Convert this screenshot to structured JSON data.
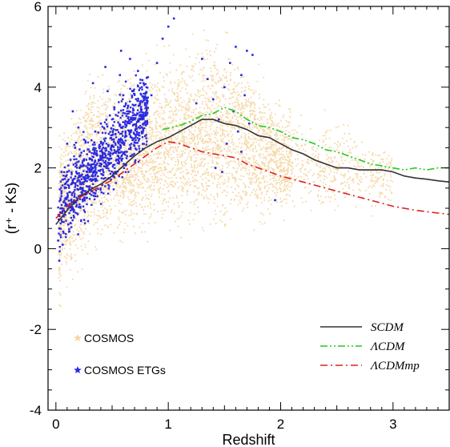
{
  "chart_data": {
    "type": "scatter",
    "xlabel": "Redshift",
    "ylabel": "(r⁺ - Ks)",
    "xlim": [
      -0.07,
      3.5
    ],
    "ylim": [
      -4,
      6
    ],
    "x_ticks": [
      0,
      1,
      2,
      3
    ],
    "y_ticks": [
      6,
      4,
      2,
      0,
      -2,
      -4
    ],
    "grid": false,
    "legend_left": [
      "COSMOS",
      "COSMOS ETGs"
    ],
    "legend_right": [
      "SCDM",
      "ΛCDM",
      "ΛCDMmp"
    ],
    "series": [
      {
        "name": "COSMOS",
        "kind": "scatter",
        "color": "#f5d5a0",
        "envelope": [
          {
            "x": 0.02,
            "lo": -1.2,
            "hi": 2.8
          },
          {
            "x": 0.3,
            "lo": 0.2,
            "hi": 4.2
          },
          {
            "x": 0.6,
            "lo": 0.3,
            "hi": 4.3
          },
          {
            "x": 1.0,
            "lo": 0.6,
            "hi": 4.8
          },
          {
            "x": 1.3,
            "lo": 0.5,
            "hi": 5.2
          },
          {
            "x": 1.6,
            "lo": 0.6,
            "hi": 5.0
          },
          {
            "x": 2.0,
            "lo": 0.8,
            "hi": 3.6
          },
          {
            "x": 2.5,
            "lo": 1.0,
            "hi": 3.1
          },
          {
            "x": 3.0,
            "lo": 1.1,
            "hi": 2.6
          }
        ]
      },
      {
        "name": "COSMOS ETGs",
        "kind": "scatter",
        "color": "#2a2ae0",
        "points": [
          {
            "x": 0.02,
            "y": 0.2
          },
          {
            "x": 0.03,
            "y": 0.5
          },
          {
            "x": 0.04,
            "y": 0.9
          },
          {
            "x": 0.05,
            "y": 1.3
          },
          {
            "x": 0.06,
            "y": 0.1
          },
          {
            "x": 0.07,
            "y": 0.8
          },
          {
            "x": 0.08,
            "y": 1.6
          },
          {
            "x": 0.09,
            "y": 1.1
          },
          {
            "x": 0.1,
            "y": 1.9
          },
          {
            "x": 0.11,
            "y": 0.6
          },
          {
            "x": 0.12,
            "y": 1.4
          },
          {
            "x": 0.13,
            "y": 2.2
          },
          {
            "x": 0.15,
            "y": 1.7
          },
          {
            "x": 0.17,
            "y": 2.5
          },
          {
            "x": 0.19,
            "y": 1.2
          },
          {
            "x": 0.21,
            "y": 2.0
          },
          {
            "x": 0.23,
            "y": 1.5
          },
          {
            "x": 0.25,
            "y": 2.7
          },
          {
            "x": 0.28,
            "y": 1.9
          },
          {
            "x": 0.3,
            "y": 2.4
          },
          {
            "x": 0.32,
            "y": 1.8
          },
          {
            "x": 0.35,
            "y": 2.9
          },
          {
            "x": 0.38,
            "y": 2.2
          },
          {
            "x": 0.4,
            "y": 3.1
          },
          {
            "x": 0.42,
            "y": 2.5
          },
          {
            "x": 0.45,
            "y": 2.0
          },
          {
            "x": 0.48,
            "y": 3.3
          },
          {
            "x": 0.5,
            "y": 2.7
          },
          {
            "x": 0.52,
            "y": 3.5
          },
          {
            "x": 0.55,
            "y": 2.3
          },
          {
            "x": 0.58,
            "y": 3.0
          },
          {
            "x": 0.6,
            "y": 3.8
          },
          {
            "x": 0.62,
            "y": 2.8
          },
          {
            "x": 0.65,
            "y": 3.4
          },
          {
            "x": 0.68,
            "y": 3.9
          },
          {
            "x": 0.7,
            "y": 3.2
          },
          {
            "x": 0.72,
            "y": 2.9
          },
          {
            "x": 0.75,
            "y": 3.6
          },
          {
            "x": 0.78,
            "y": 4.1
          },
          {
            "x": 0.8,
            "y": 3.3
          },
          {
            "x": 0.33,
            "y": 4.1
          },
          {
            "x": 0.44,
            "y": 4.5
          },
          {
            "x": 0.57,
            "y": 4.3
          },
          {
            "x": 0.66,
            "y": 4.7
          },
          {
            "x": 0.73,
            "y": 4.4
          },
          {
            "x": 0.58,
            "y": 4.9
          },
          {
            "x": 0.46,
            "y": 3.9
          },
          {
            "x": 0.15,
            "y": 3.4
          },
          {
            "x": 0.2,
            "y": 3.0
          },
          {
            "x": 0.03,
            "y": -0.3
          },
          {
            "x": 0.9,
            "y": 4.6
          },
          {
            "x": 0.95,
            "y": 5.2
          },
          {
            "x": 1.0,
            "y": 5.5
          },
          {
            "x": 1.3,
            "y": 4.7
          },
          {
            "x": 1.35,
            "y": 4.2
          },
          {
            "x": 1.4,
            "y": 3.7
          },
          {
            "x": 1.45,
            "y": 3.2
          },
          {
            "x": 1.5,
            "y": 4.0
          },
          {
            "x": 1.52,
            "y": 2.6
          },
          {
            "x": 1.55,
            "y": 4.6
          },
          {
            "x": 1.58,
            "y": 3.4
          },
          {
            "x": 1.6,
            "y": 5.0
          },
          {
            "x": 1.62,
            "y": 2.9
          },
          {
            "x": 1.65,
            "y": 4.3
          },
          {
            "x": 1.68,
            "y": 3.8
          },
          {
            "x": 1.7,
            "y": 4.9
          },
          {
            "x": 1.72,
            "y": 3.1
          },
          {
            "x": 1.75,
            "y": 4.8
          },
          {
            "x": 1.42,
            "y": 2.0
          },
          {
            "x": 1.48,
            "y": 1.9
          },
          {
            "x": 1.95,
            "y": 1.2
          },
          {
            "x": 1.65,
            "y": 2.4
          },
          {
            "x": 1.25,
            "y": 3.6
          },
          {
            "x": 1.05,
            "y": 5.7
          },
          {
            "x": 0.85,
            "y": 3.8
          },
          {
            "x": 0.35,
            "y": 1.3
          },
          {
            "x": 0.1,
            "y": 2.6
          },
          {
            "x": 0.05,
            "y": 1.9
          }
        ]
      },
      {
        "name": "SCDM",
        "kind": "line",
        "color": "#333333",
        "dash": "solid",
        "points": [
          {
            "x": 0.0,
            "y": 0.6
          },
          {
            "x": 0.1,
            "y": 0.95
          },
          {
            "x": 0.2,
            "y": 1.25
          },
          {
            "x": 0.3,
            "y": 1.45
          },
          {
            "x": 0.4,
            "y": 1.6
          },
          {
            "x": 0.5,
            "y": 1.8
          },
          {
            "x": 0.6,
            "y": 2.05
          },
          {
            "x": 0.7,
            "y": 2.3
          },
          {
            "x": 0.8,
            "y": 2.5
          },
          {
            "x": 0.9,
            "y": 2.65
          },
          {
            "x": 1.0,
            "y": 2.75
          },
          {
            "x": 1.1,
            "y": 2.9
          },
          {
            "x": 1.2,
            "y": 3.05
          },
          {
            "x": 1.3,
            "y": 3.2
          },
          {
            "x": 1.4,
            "y": 3.2
          },
          {
            "x": 1.5,
            "y": 3.1
          },
          {
            "x": 1.6,
            "y": 3.05
          },
          {
            "x": 1.7,
            "y": 2.95
          },
          {
            "x": 1.8,
            "y": 2.8
          },
          {
            "x": 1.9,
            "y": 2.75
          },
          {
            "x": 2.0,
            "y": 2.6
          },
          {
            "x": 2.1,
            "y": 2.45
          },
          {
            "x": 2.2,
            "y": 2.35
          },
          {
            "x": 2.3,
            "y": 2.2
          },
          {
            "x": 2.4,
            "y": 2.1
          },
          {
            "x": 2.5,
            "y": 2.0
          },
          {
            "x": 2.6,
            "y": 2.0
          },
          {
            "x": 2.7,
            "y": 1.95
          },
          {
            "x": 2.8,
            "y": 1.95
          },
          {
            "x": 2.9,
            "y": 1.95
          },
          {
            "x": 3.0,
            "y": 1.9
          },
          {
            "x": 3.1,
            "y": 1.8
          },
          {
            "x": 3.2,
            "y": 1.75
          },
          {
            "x": 3.3,
            "y": 1.72
          },
          {
            "x": 3.4,
            "y": 1.68
          },
          {
            "x": 3.5,
            "y": 1.65
          }
        ]
      },
      {
        "name": "ΛCDM",
        "kind": "line",
        "color": "#22cc22",
        "dash": "dashdotdot",
        "points": [
          {
            "x": 0.95,
            "y": 2.95
          },
          {
            "x": 1.1,
            "y": 3.05
          },
          {
            "x": 1.2,
            "y": 3.15
          },
          {
            "x": 1.3,
            "y": 3.3
          },
          {
            "x": 1.4,
            "y": 3.35
          },
          {
            "x": 1.5,
            "y": 3.5
          },
          {
            "x": 1.6,
            "y": 3.4
          },
          {
            "x": 1.7,
            "y": 3.2
          },
          {
            "x": 1.8,
            "y": 3.05
          },
          {
            "x": 1.9,
            "y": 3.0
          },
          {
            "x": 2.0,
            "y": 2.9
          },
          {
            "x": 2.1,
            "y": 2.75
          },
          {
            "x": 2.2,
            "y": 2.7
          },
          {
            "x": 2.3,
            "y": 2.6
          },
          {
            "x": 2.4,
            "y": 2.45
          },
          {
            "x": 2.5,
            "y": 2.4
          },
          {
            "x": 2.6,
            "y": 2.3
          },
          {
            "x": 2.7,
            "y": 2.2
          },
          {
            "x": 2.8,
            "y": 2.1
          },
          {
            "x": 2.9,
            "y": 2.05
          },
          {
            "x": 3.0,
            "y": 2.0
          },
          {
            "x": 3.1,
            "y": 1.95
          },
          {
            "x": 3.2,
            "y": 2.0
          },
          {
            "x": 3.3,
            "y": 1.95
          },
          {
            "x": 3.4,
            "y": 2.0
          },
          {
            "x": 3.5,
            "y": 2.0
          }
        ]
      },
      {
        "name": "ΛCDMmp",
        "kind": "line",
        "color": "#dd2222",
        "dash": "dashdot",
        "points": [
          {
            "x": 0.0,
            "y": 0.75
          },
          {
            "x": 0.1,
            "y": 1.05
          },
          {
            "x": 0.2,
            "y": 1.25
          },
          {
            "x": 0.3,
            "y": 1.4
          },
          {
            "x": 0.4,
            "y": 1.55
          },
          {
            "x": 0.5,
            "y": 1.7
          },
          {
            "x": 0.6,
            "y": 1.9
          },
          {
            "x": 0.7,
            "y": 2.1
          },
          {
            "x": 0.8,
            "y": 2.3
          },
          {
            "x": 0.9,
            "y": 2.5
          },
          {
            "x": 1.0,
            "y": 2.65
          },
          {
            "x": 1.1,
            "y": 2.6
          },
          {
            "x": 1.2,
            "y": 2.5
          },
          {
            "x": 1.3,
            "y": 2.4
          },
          {
            "x": 1.4,
            "y": 2.35
          },
          {
            "x": 1.5,
            "y": 2.3
          },
          {
            "x": 1.6,
            "y": 2.25
          },
          {
            "x": 1.7,
            "y": 2.1
          },
          {
            "x": 1.8,
            "y": 2.0
          },
          {
            "x": 1.9,
            "y": 1.9
          },
          {
            "x": 2.0,
            "y": 1.8
          },
          {
            "x": 2.2,
            "y": 1.65
          },
          {
            "x": 2.4,
            "y": 1.5
          },
          {
            "x": 2.6,
            "y": 1.35
          },
          {
            "x": 2.8,
            "y": 1.2
          },
          {
            "x": 3.0,
            "y": 1.05
          },
          {
            "x": 3.2,
            "y": 0.95
          },
          {
            "x": 3.4,
            "y": 0.88
          },
          {
            "x": 3.5,
            "y": 0.85
          }
        ]
      }
    ]
  }
}
